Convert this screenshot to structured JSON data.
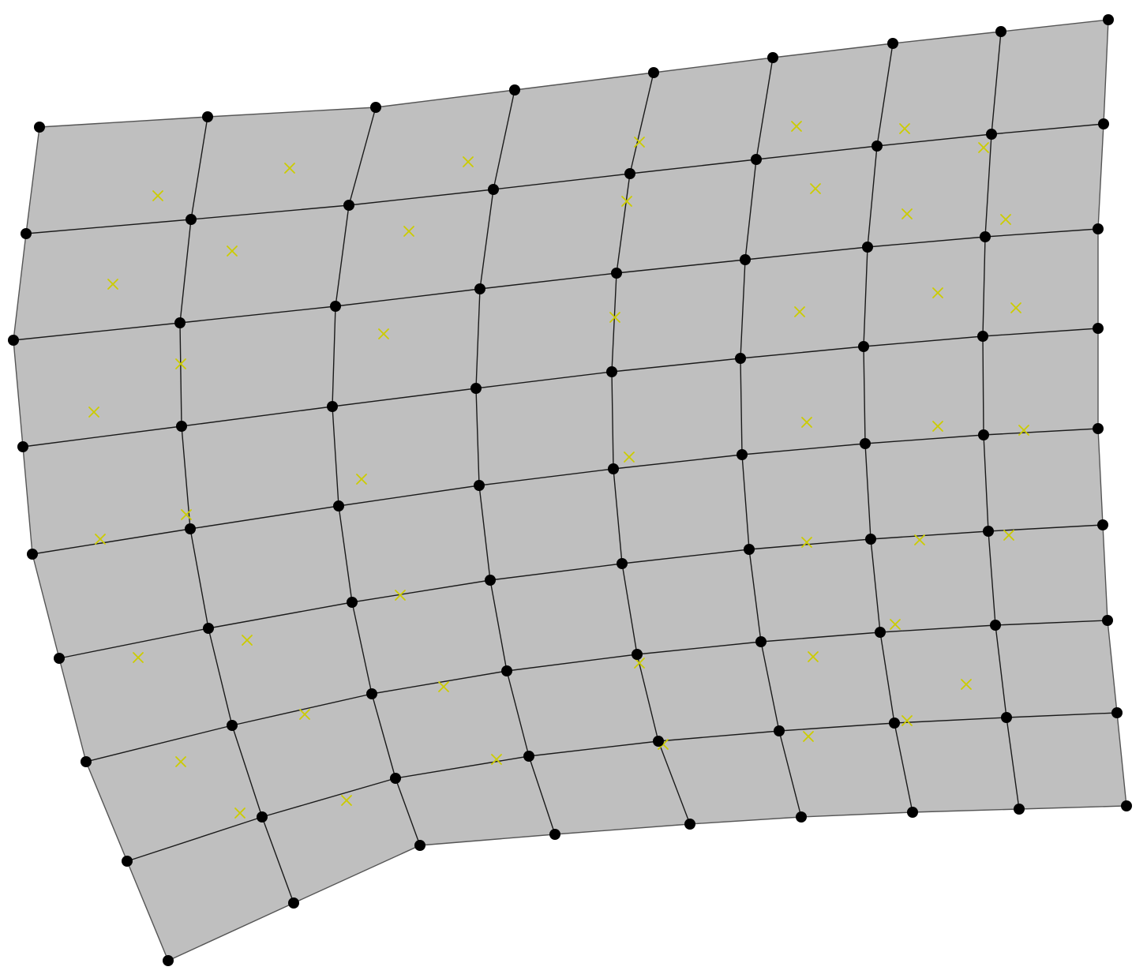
{
  "colors": {
    "background": "#ffffff",
    "mesh_fill": "#bfbfbf",
    "edge": "#1a1a1a",
    "outline": "#555555",
    "node": "#000000",
    "marker": "#cccc00"
  },
  "icons": {
    "node": "filled-circle",
    "marker": "x-cross"
  }
}
